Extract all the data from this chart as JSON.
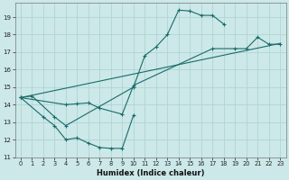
{
  "xlabel": "Humidex (Indice chaleur)",
  "bg_color": "#cce8e8",
  "grid_color": "#b0d4d4",
  "line_color": "#1a6b6b",
  "xlim": [
    -0.5,
    23.5
  ],
  "ylim": [
    11,
    19.8
  ],
  "yticks": [
    11,
    12,
    13,
    14,
    15,
    16,
    17,
    18,
    19
  ],
  "xticks": [
    0,
    1,
    2,
    3,
    4,
    5,
    6,
    7,
    8,
    9,
    10,
    11,
    12,
    13,
    14,
    15,
    16,
    17,
    18,
    19,
    20,
    21,
    22,
    23
  ],
  "series": [
    {
      "x": [
        0,
        1,
        3,
        4,
        10,
        11,
        12,
        13,
        14,
        15,
        16,
        17,
        18
      ],
      "y": [
        14.4,
        14.5,
        13.3,
        12.8,
        15.0,
        16.8,
        17.3,
        18.0,
        19.4,
        19.35,
        19.1,
        19.1,
        18.6
      ]
    },
    {
      "x": [
        0,
        2,
        3,
        4,
        5,
        6,
        7,
        8,
        9,
        10
      ],
      "y": [
        14.4,
        13.3,
        12.8,
        12.0,
        12.1,
        11.8,
        11.55,
        11.5,
        11.5,
        13.4
      ]
    },
    {
      "x": [
        0,
        4,
        5,
        6,
        7,
        9,
        10,
        17,
        19,
        20,
        21,
        22,
        23
      ],
      "y": [
        14.4,
        14.0,
        14.05,
        14.1,
        13.8,
        13.45,
        15.1,
        17.2,
        17.2,
        17.2,
        17.85,
        17.45,
        17.45
      ]
    },
    {
      "x": [
        0,
        23
      ],
      "y": [
        14.4,
        17.5
      ]
    }
  ]
}
